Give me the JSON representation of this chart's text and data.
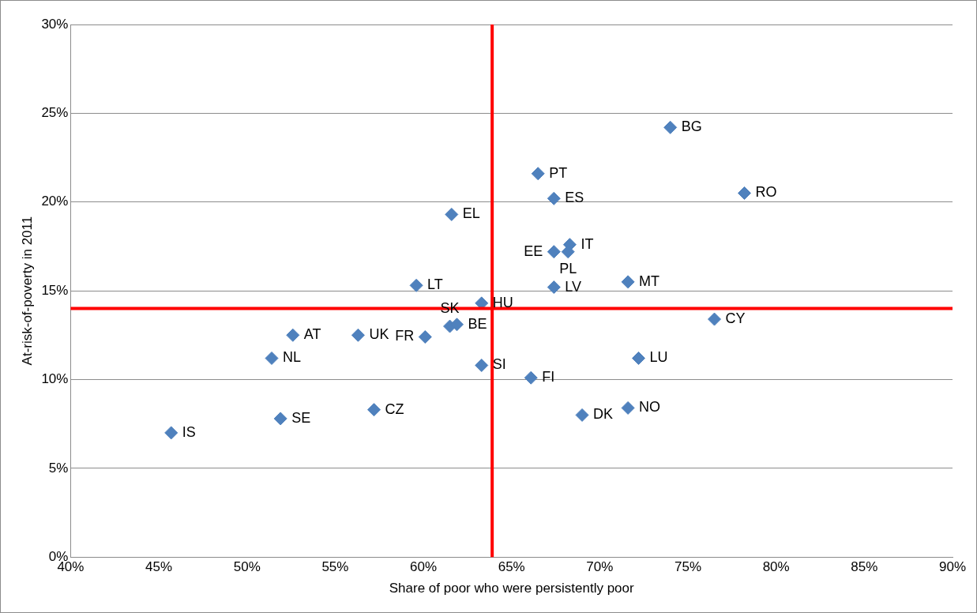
{
  "chart_data": {
    "type": "scatter",
    "xlabel": "Share of poor who were persistently poor",
    "ylabel": "At-risk-of-poverty in 2011",
    "xlim": [
      40,
      90
    ],
    "xticks": [
      {
        "value": 40,
        "label": "40%"
      },
      {
        "value": 45,
        "label": "45%"
      },
      {
        "value": 50,
        "label": "50%"
      },
      {
        "value": 55,
        "label": "55%"
      },
      {
        "value": 60,
        "label": "60%"
      },
      {
        "value": 65,
        "label": "65%"
      },
      {
        "value": 70,
        "label": "70%"
      },
      {
        "value": 75,
        "label": "75%"
      },
      {
        "value": 80,
        "label": "80%"
      },
      {
        "value": 85,
        "label": "85%"
      },
      {
        "value": 90,
        "label": "90%"
      }
    ],
    "ylim": [
      0,
      30
    ],
    "yticks": [
      {
        "value": 0,
        "label": "0%"
      },
      {
        "value": 5,
        "label": "5%"
      },
      {
        "value": 10,
        "label": "10%"
      },
      {
        "value": 15,
        "label": "15%"
      },
      {
        "value": 20,
        "label": "20%"
      },
      {
        "value": 25,
        "label": "25%"
      },
      {
        "value": 30,
        "label": "30%"
      }
    ],
    "grid": "y",
    "legend": false,
    "marker": "diamond",
    "series": [
      {
        "color": "#4f81bd",
        "x": [
          45.7,
          51.9,
          57.2,
          51.4,
          52.6,
          56.3,
          60.1,
          61.5,
          61.9,
          59.6,
          61.6,
          63.3,
          63.3,
          66.1,
          66.5,
          67.4,
          67.4,
          68.3,
          68.2,
          67.4,
          69.0,
          71.6,
          71.6,
          72.2,
          76.5,
          74.0,
          78.2
        ],
        "values": [
          7.0,
          7.8,
          8.3,
          11.2,
          12.5,
          12.5,
          12.4,
          13.0,
          13.1,
          15.3,
          19.3,
          14.3,
          10.8,
          10.1,
          21.6,
          20.2,
          17.2,
          17.6,
          17.2,
          15.2,
          8.0,
          8.4,
          15.5,
          11.2,
          13.4,
          24.2,
          20.5
        ]
      }
    ],
    "ref_lines": [
      {
        "axis": "x",
        "value": 63.9,
        "color": "#ff0000"
      },
      {
        "axis": "y",
        "value": 14.0,
        "color": "#ff0000"
      }
    ],
    "annotations": [
      {
        "text": "IS",
        "x": 45.7,
        "y": 7.0
      },
      {
        "text": "SE",
        "x": 51.9,
        "y": 7.8
      },
      {
        "text": "CZ",
        "x": 57.2,
        "y": 8.3
      },
      {
        "text": "NL",
        "x": 51.4,
        "y": 11.2
      },
      {
        "text": "AT",
        "x": 52.6,
        "y": 12.5
      },
      {
        "text": "UK",
        "x": 56.3,
        "y": 12.5
      },
      {
        "text": "FR",
        "x": 60.1,
        "y": 12.4
      },
      {
        "text": "SK",
        "x": 61.5,
        "y": 13.0
      },
      {
        "text": "BE",
        "x": 61.9,
        "y": 13.1
      },
      {
        "text": "LT",
        "x": 59.6,
        "y": 15.3
      },
      {
        "text": "EL",
        "x": 61.6,
        "y": 19.3
      },
      {
        "text": "HU",
        "x": 63.3,
        "y": 14.3
      },
      {
        "text": "SI",
        "x": 63.3,
        "y": 10.8
      },
      {
        "text": "FI",
        "x": 66.1,
        "y": 10.1
      },
      {
        "text": "PT",
        "x": 66.5,
        "y": 21.6
      },
      {
        "text": "ES",
        "x": 67.4,
        "y": 20.2
      },
      {
        "text": "EE",
        "x": 67.4,
        "y": 17.2
      },
      {
        "text": "IT",
        "x": 68.3,
        "y": 17.6
      },
      {
        "text": "PL",
        "x": 68.2,
        "y": 17.2
      },
      {
        "text": "LV",
        "x": 67.4,
        "y": 15.2
      },
      {
        "text": "DK",
        "x": 69.0,
        "y": 8.0
      },
      {
        "text": "NO",
        "x": 71.6,
        "y": 8.4
      },
      {
        "text": "MT",
        "x": 71.6,
        "y": 15.5
      },
      {
        "text": "LU",
        "x": 72.2,
        "y": 11.2
      },
      {
        "text": "CY",
        "x": 76.5,
        "y": 13.4
      },
      {
        "text": "BG",
        "x": 74.0,
        "y": 24.2
      },
      {
        "text": "RO",
        "x": 78.2,
        "y": 20.5
      }
    ]
  }
}
